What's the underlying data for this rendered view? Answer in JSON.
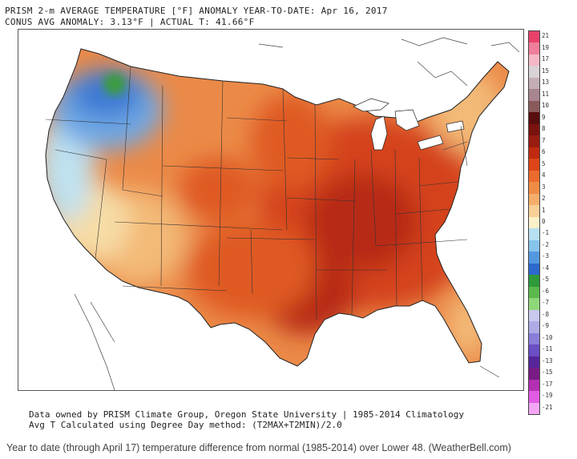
{
  "header": {
    "line1": "PRISM 2-m AVERAGE TEMPERATURE [°F] ANOMALY YEAR-TO-DATE: Apr 16, 2017",
    "line2": "CONUS AVG ANOMALY: 3.13°F | ACTUAL T: 41.66°F"
  },
  "legend": {
    "ticks": [
      "21",
      "19",
      "17",
      "15",
      "13",
      "11",
      "10",
      "9",
      "8",
      "7",
      "6",
      "5",
      "4",
      "3",
      "2",
      "1",
      "0",
      "-1",
      "-2",
      "-3",
      "-4",
      "-5",
      "-6",
      "-7",
      "-8",
      "-9",
      "-10",
      "-11",
      "-13",
      "-15",
      "-17",
      "-19",
      "-21"
    ],
    "colors": [
      "#e8426b",
      "#ef7f9a",
      "#f5b7c6",
      "#d9d2d6",
      "#c4aeb6",
      "#a98590",
      "#8a5a5a",
      "#5a0e0e",
      "#7a1210",
      "#9a1b10",
      "#c02a10",
      "#de4518",
      "#ec6a2c",
      "#f08c46",
      "#f5ad6a",
      "#f8cf96",
      "#fbf0c8",
      "#b6e0f0",
      "#86c4ec",
      "#5499e0",
      "#2b69cc",
      "#2e9a3a",
      "#5ab94a",
      "#8fd87a",
      "#c9c8ee",
      "#aeaae6",
      "#8a7ed8",
      "#6a4ec4",
      "#56259a",
      "#7a1b86",
      "#b42fb2",
      "#e15ce3",
      "#f4a6f6"
    ]
  },
  "map_regions": {
    "colors": {
      "warm_light": "#f3b977",
      "warm": "#eb8a48",
      "hot": "#df5a22",
      "hotter": "#d4431a",
      "very_hot": "#b72a12",
      "cool_light": "#bfe1ef",
      "cool": "#6ea7e4",
      "cold": "#3e79d3",
      "green": "#3a9d3a",
      "pale": "#f6dca5",
      "water": "#ffffff"
    }
  },
  "footer": {
    "line1": "Data owned by PRISM Climate Group, Oregon State University | 1985-2014 Climatology",
    "line2": "Avg T Calculated using Degree Day method: (T2MAX+T2MIN)/2.0"
  },
  "caption": "Year to date (through April 17) temperature difference from normal (1985-2014) over Lower 48. (WeatherBell.com)"
}
